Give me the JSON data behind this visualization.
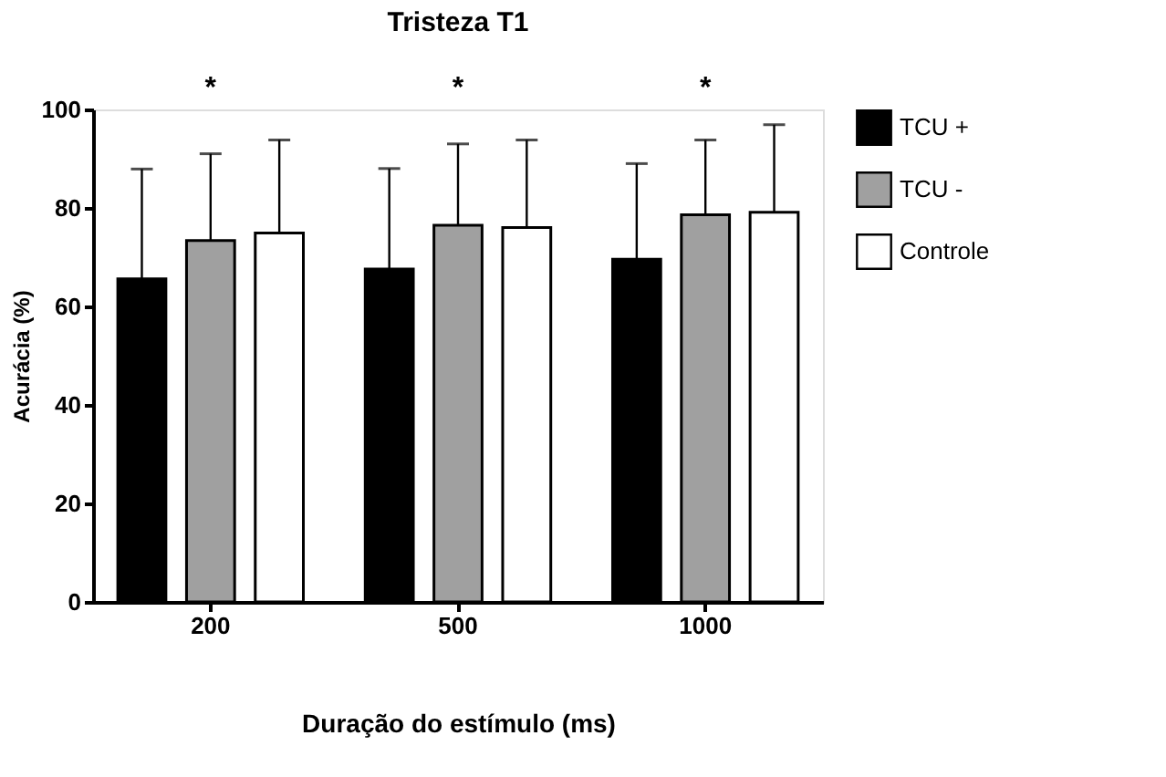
{
  "chart_data": {
    "type": "bar",
    "title": "Tristeza T1",
    "xlabel": "Duração do estímulo (ms)",
    "ylabel": "Acurácia (%)",
    "categories": [
      "200",
      "500",
      "1000"
    ],
    "series": [
      {
        "name": "TCU +",
        "color": "#000000",
        "values": [
          65.6,
          67.6,
          69.6
        ],
        "errors": [
          [
            65.6,
            87.9
          ],
          [
            67.6,
            88
          ],
          [
            69.6,
            89
          ]
        ]
      },
      {
        "name": "TCU -",
        "color": "#a0a0a0",
        "values": [
          73.4,
          76.5,
          78.6
        ],
        "errors": [
          [
            73.4,
            91
          ],
          [
            76.5,
            93
          ],
          [
            78.6,
            93.8
          ]
        ]
      },
      {
        "name": "Controle",
        "color": "#ffffff",
        "values": [
          74.9,
          76,
          79.1
        ],
        "errors": [
          [
            74.9,
            93.8
          ],
          [
            76,
            93.8
          ],
          [
            79.1,
            96.9
          ]
        ]
      }
    ],
    "ylim": [
      0,
      100
    ],
    "yticks": [
      0,
      20,
      40,
      60,
      80,
      100
    ],
    "grid": false,
    "legend": "top right",
    "annotations": [
      "*",
      "*",
      "*"
    ]
  }
}
